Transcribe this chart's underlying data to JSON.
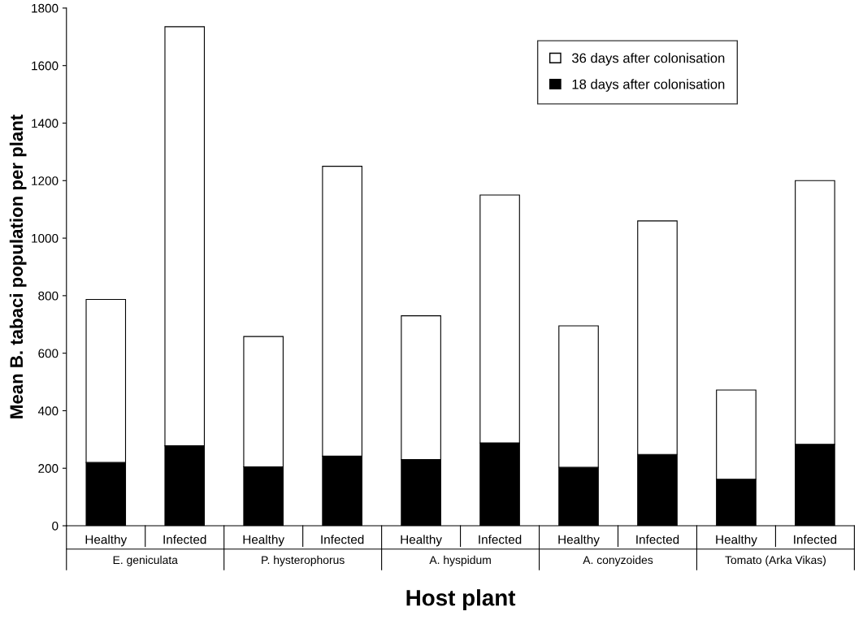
{
  "chart_data": {
    "type": "bar",
    "stacked": true,
    "xlabel": "Host plant",
    "ylabel": "Mean B. tabaci population per plant",
    "categories": [
      "Healthy",
      "Infected",
      "Healthy",
      "Infected",
      "Healthy",
      "Infected",
      "Healthy",
      "Infected",
      "Healthy",
      "Infected"
    ],
    "annotations": [
      "E. geniculata",
      "P. hysterophorus",
      "A. hyspidum",
      "A. conyzoides",
      "Tomato (Arka Vikas)"
    ],
    "series": [
      {
        "name": "18 days after colonisation",
        "color": "#000000",
        "values": [
          220,
          278,
          205,
          242,
          230,
          288,
          203,
          248,
          162,
          283
        ]
      },
      {
        "name": "36 days after colonisation",
        "color": "#ffffff",
        "values": [
          567,
          1457,
          453,
          1008,
          500,
          862,
          492,
          812,
          310,
          917
        ]
      }
    ],
    "ylim": [
      0,
      1800
    ],
    "yticks": [
      0,
      200,
      400,
      600,
      800,
      1000,
      1200,
      1400,
      1600,
      1800
    ],
    "grid": false,
    "legend": "top right"
  }
}
